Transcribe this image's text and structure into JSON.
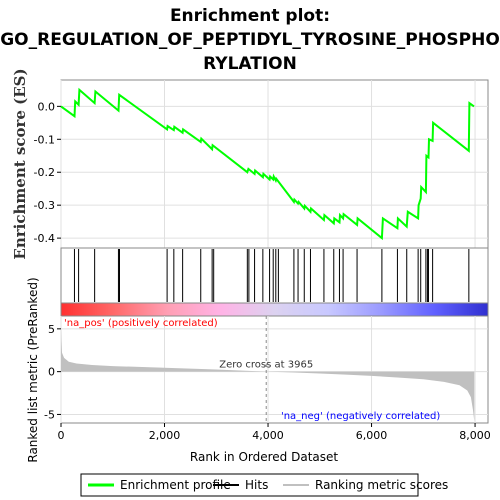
{
  "chart_data": {
    "type": "line",
    "title_lines": [
      "Enrichment plot:",
      "GO_REGULATION_OF_PEPTIDYL_TYROSINE_PHOSPHO",
      "RYLATION"
    ],
    "xlabel": "Rank in Ordered Dataset",
    "x_ticks": [
      "0",
      "2,000",
      "4,000",
      "6,000",
      "8,000"
    ],
    "xlim": [
      0,
      8250
    ],
    "top_panel": {
      "ylabel": "Enrichment score (ES)",
      "ylim": [
        -0.43,
        0.08
      ],
      "y_ticks": [
        "0.0",
        "-0.1",
        "-0.2",
        "-0.3",
        "-0.4"
      ],
      "series": [
        {
          "name": "Enrichment profile",
          "color": "#00ff00",
          "x": [
            0,
            260,
            275,
            340,
            355,
            650,
            665,
            1110,
            1125,
            2050,
            2060,
            2180,
            2190,
            2350,
            2360,
            2700,
            2710,
            2920,
            2930,
            3600,
            3620,
            3740,
            3750,
            3900,
            3910,
            4030,
            4040,
            4100,
            4110,
            4150,
            4160,
            4500,
            4510,
            4580,
            4590,
            4700,
            4710,
            4820,
            4830,
            5080,
            5090,
            5270,
            5280,
            5380,
            5390,
            5450,
            5460,
            5720,
            5730,
            6200,
            6220,
            6500,
            6510,
            6680,
            6700,
            6900,
            6910,
            6950,
            6960,
            7050,
            7060,
            7100,
            7110,
            7180,
            7190,
            7880,
            7890,
            7980
          ],
          "y": [
            0.0,
            -0.03,
            0.015,
            0.005,
            0.05,
            0.01,
            0.045,
            -0.013,
            0.035,
            -0.07,
            -0.06,
            -0.072,
            -0.062,
            -0.08,
            -0.07,
            -0.108,
            -0.098,
            -0.13,
            -0.118,
            -0.2,
            -0.19,
            -0.205,
            -0.195,
            -0.215,
            -0.205,
            -0.222,
            -0.213,
            -0.222,
            -0.213,
            -0.225,
            -0.22,
            -0.29,
            -0.283,
            -0.295,
            -0.29,
            -0.31,
            -0.302,
            -0.32,
            -0.31,
            -0.345,
            -0.33,
            -0.355,
            -0.34,
            -0.352,
            -0.33,
            -0.34,
            -0.327,
            -0.36,
            -0.34,
            -0.4,
            -0.34,
            -0.37,
            -0.34,
            -0.365,
            -0.32,
            -0.34,
            -0.3,
            -0.28,
            -0.245,
            -0.26,
            -0.15,
            -0.155,
            -0.1,
            -0.105,
            -0.05,
            -0.135,
            0.01,
            0.0
          ]
        }
      ]
    },
    "hits": [
      260,
      340,
      650,
      1110,
      1130,
      2050,
      2180,
      2350,
      2700,
      2920,
      2950,
      3600,
      3630,
      3740,
      3900,
      4030,
      4100,
      4150,
      4200,
      4500,
      4580,
      4700,
      4820,
      5080,
      5270,
      5380,
      5450,
      5720,
      6200,
      6500,
      6680,
      6900,
      6950,
      7050,
      7080,
      7100,
      7180,
      7880
    ],
    "color_bar": {
      "stops": [
        "#ff3030",
        "#ff6a6a",
        "#ff9fb4",
        "#ffb3e6",
        "#dcd2f0",
        "#c8c8ff",
        "#9a9aff",
        "#6060ff",
        "#3030d0"
      ]
    },
    "bottom_panel": {
      "ylabel": "Ranked list metric (PreRanked)",
      "ylim": [
        -6,
        6.5
      ],
      "y_ticks": [
        "5",
        "0",
        "-5"
      ],
      "series_name": "Ranking metric scores",
      "zero_cross_label": "Zero cross at 3965",
      "zero_cross": 3965,
      "pos_label": "'na_pos' (positively correlated)",
      "neg_label": "'na_neg' (negatively correlated)",
      "pos_color": "#ff0000",
      "neg_color": "#0000ff",
      "metric_profile": [
        [
          0,
          5.0
        ],
        [
          20,
          2.2
        ],
        [
          60,
          1.6
        ],
        [
          150,
          1.15
        ],
        [
          300,
          0.95
        ],
        [
          600,
          0.78
        ],
        [
          1000,
          0.65
        ],
        [
          1500,
          0.55
        ],
        [
          2000,
          0.45
        ],
        [
          2500,
          0.35
        ],
        [
          3000,
          0.25
        ],
        [
          3500,
          0.12
        ],
        [
          3965,
          0.0
        ],
        [
          4500,
          -0.1
        ],
        [
          5000,
          -0.22
        ],
        [
          5500,
          -0.35
        ],
        [
          6000,
          -0.5
        ],
        [
          6500,
          -0.68
        ],
        [
          7000,
          -0.9
        ],
        [
          7400,
          -1.2
        ],
        [
          7700,
          -1.6
        ],
        [
          7850,
          -2.2
        ],
        [
          7920,
          -3.0
        ],
        [
          7960,
          -4.5
        ],
        [
          7985,
          -5.8
        ]
      ]
    },
    "legend": [
      {
        "label": "Enrichment profile",
        "color": "#00ff00",
        "kind": "line"
      },
      {
        "label": "Hits",
        "color": "#000000",
        "kind": "line"
      },
      {
        "label": "Ranking metric scores",
        "color": "#c0c0c0",
        "kind": "line"
      }
    ]
  }
}
